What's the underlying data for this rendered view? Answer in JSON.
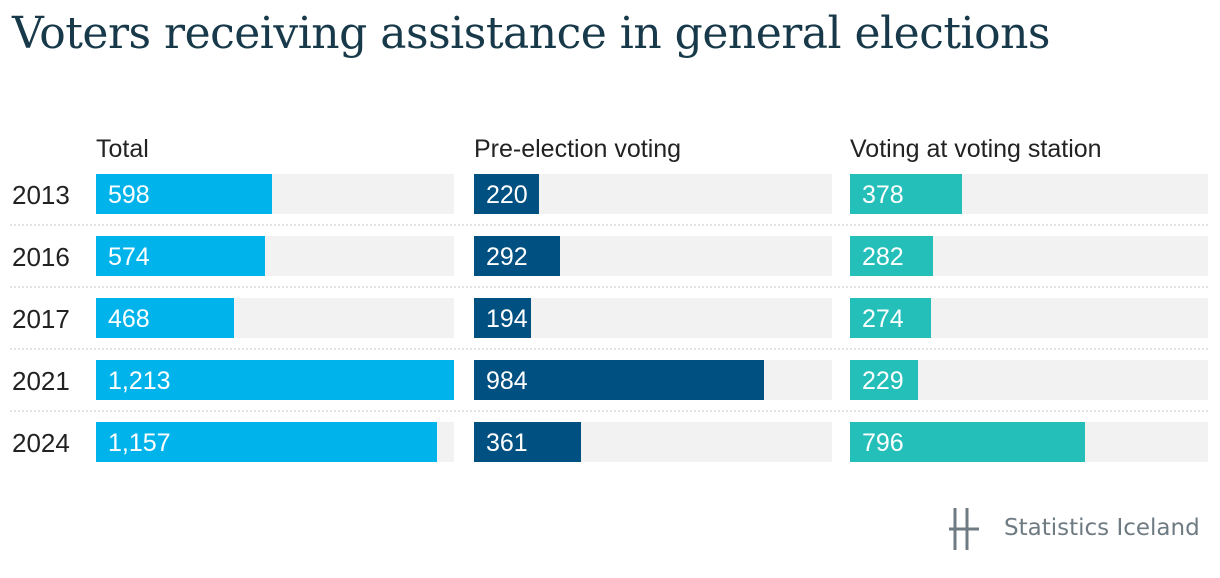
{
  "chart_data": {
    "type": "bar",
    "title": "Voters receiving assistance in general elections",
    "categories": [
      "2013",
      "2016",
      "2017",
      "2021",
      "2024"
    ],
    "series": [
      {
        "name": "Total",
        "values": [
          598,
          574,
          468,
          1213,
          1157
        ],
        "labels": [
          "598",
          "574",
          "468",
          "1,213",
          "1,157"
        ],
        "color": "#00b4eb"
      },
      {
        "name": "Pre-election voting",
        "values": [
          220,
          292,
          194,
          984,
          361
        ],
        "labels": [
          "220",
          "292",
          "194",
          "984",
          "361"
        ],
        "color": "#005182"
      },
      {
        "name": "Voting at voting station",
        "values": [
          378,
          282,
          274,
          229,
          796
        ],
        "labels": [
          "378",
          "282",
          "274",
          "229",
          "796"
        ],
        "color": "#25bfba"
      }
    ],
    "xlim": [
      0,
      1213
    ],
    "background_color": "#f2f2f2",
    "legend": "none",
    "grid": false
  },
  "logo": {
    "text": "Statistics Iceland",
    "icon": "statistics-iceland-logo-icon"
  }
}
